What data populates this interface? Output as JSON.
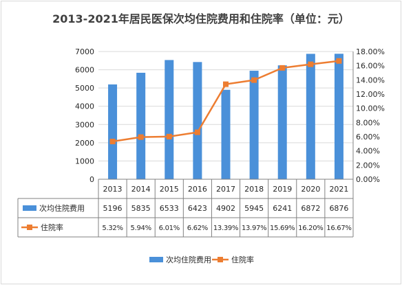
{
  "chart_data": {
    "type": "bar",
    "title": "2013-2021年居民医保次均住院费用和住院率（单位：元）",
    "categories": [
      "2013",
      "2014",
      "2015",
      "2016",
      "2017",
      "2018",
      "2019",
      "2020",
      "2021"
    ],
    "series": [
      {
        "name": "次均住院费用",
        "type": "bar",
        "axis": "left",
        "values": [
          5196,
          5835,
          6533,
          6423,
          4902,
          5945,
          6241,
          6872,
          6876
        ],
        "labels": [
          "5196",
          "5835",
          "6533",
          "6423",
          "4902",
          "5945",
          "6241",
          "6872",
          "6876"
        ],
        "color": "#4a90d9"
      },
      {
        "name": "住院率",
        "type": "line",
        "axis": "right",
        "values": [
          5.32,
          5.94,
          6.01,
          6.62,
          13.39,
          13.97,
          15.69,
          16.2,
          16.67
        ],
        "labels": [
          "5.32%",
          "5.94%",
          "6.01%",
          "6.62%",
          "13.39%",
          "13.97%",
          "15.69%",
          "16.20%",
          "16.67%"
        ],
        "color": "#ed7d31"
      }
    ],
    "y_left": {
      "ylim": [
        0,
        7000
      ],
      "ticks": [
        "0",
        "1000",
        "2000",
        "3000",
        "4000",
        "5000",
        "6000",
        "7000"
      ]
    },
    "y_right": {
      "ylim": [
        0,
        18
      ],
      "ticks": [
        "0.00%",
        "2.00%",
        "4.00%",
        "6.00%",
        "8.00%",
        "10.00%",
        "12.00%",
        "14.00%",
        "16.00%",
        "18.00%"
      ]
    },
    "grid": true,
    "legend": "bottom",
    "data_table": true
  }
}
